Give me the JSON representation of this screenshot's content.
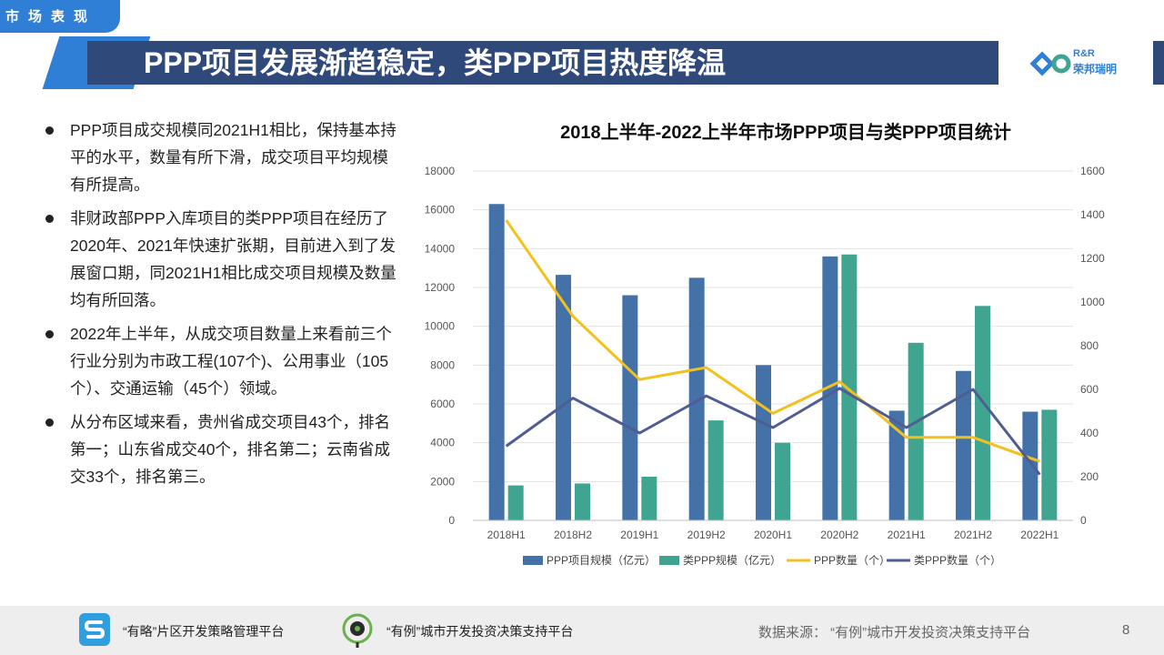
{
  "section_tag": "市场表现",
  "title": "PPP项目发展渐趋稳定，类PPP项目热度降温",
  "logo": {
    "line1": "R&R",
    "line2": "荣邦瑞明"
  },
  "bullets": [
    "PPP项目成交规模同2021H1相比，保持基本持平的水平，数量有所下滑，成交项目平均规模有所提高。",
    "非财政部PPP入库项目的类PPP项目在经历了2020年、2021年快速扩张期，目前进入到了发展窗口期，同2021H1相比成交项目规模及数量均有所回落。",
    "2022年上半年，从成交项目数量上来看前三个行业分别为市政工程(107个)、公用事业（105个）、交通运输（45个）领域。",
    "从分布区域来看，贵州省成交项目43个，排名第一；山东省成交40个，排名第二；云南省成交33个，排名第三。"
  ],
  "chart_data": {
    "type": "bar",
    "title": "2018上半年-2022上半年市场PPP项目与类PPP项目统计",
    "categories": [
      "2018H1",
      "2018H2",
      "2019H1",
      "2019H2",
      "2020H1",
      "2020H2",
      "2021H1",
      "2021H2",
      "2022H1"
    ],
    "left_axis": {
      "ylim": [
        0,
        18000
      ],
      "ticks": [
        0,
        2000,
        4000,
        6000,
        8000,
        10000,
        12000,
        14000,
        16000,
        18000
      ]
    },
    "right_axis": {
      "ylim": [
        0,
        1600
      ],
      "ticks": [
        0,
        200,
        400,
        600,
        800,
        1000,
        1200,
        1400,
        1600
      ]
    },
    "series": [
      {
        "name": "PPP项目规模（亿元）",
        "type": "bar",
        "axis": "left",
        "color": "#4472a8",
        "values": [
          16300,
          12650,
          11600,
          12500,
          8000,
          13600,
          5650,
          7700,
          5600
        ]
      },
      {
        "name": "类PPP规模（亿元）",
        "type": "bar",
        "axis": "left",
        "color": "#3fa590",
        "values": [
          1800,
          1900,
          2250,
          5150,
          4000,
          13700,
          9150,
          11050,
          5700
        ]
      },
      {
        "name": "PPP数量（个）",
        "type": "line",
        "axis": "right",
        "color": "#f2c11c",
        "values": [
          1375,
          935,
          645,
          700,
          490,
          635,
          380,
          380,
          270
        ]
      },
      {
        "name": "类PPP数量（个）",
        "type": "line",
        "axis": "right",
        "color": "#4f5d93",
        "values": [
          340,
          560,
          400,
          570,
          425,
          605,
          425,
          600,
          210
        ]
      }
    ],
    "legend_position": "bottom",
    "grid": true
  },
  "footer": {
    "platform1": "“有略”片区开发策略管理平台",
    "platform2": "“有例”城市开发投资决策支持平台",
    "source": "数据来源：  “有例”城市开发投资决策支持平台",
    "page": "8"
  },
  "colors": {
    "title_bar": "#2f4a7a",
    "accent": "#2f7fd6"
  },
  "icons": {
    "platform1_icon": "s-logo-icon",
    "platform2_icon": "target-pin-icon"
  }
}
